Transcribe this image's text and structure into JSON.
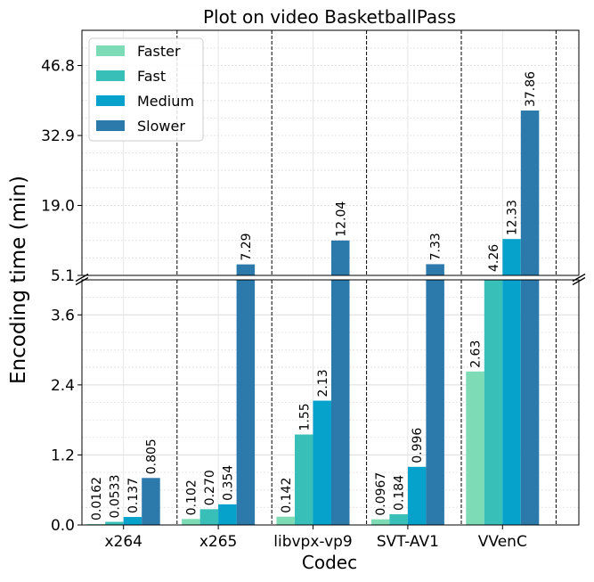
{
  "chart_data": {
    "type": "bar",
    "title": "Plot on video BasketballPass",
    "xlabel": "Codec",
    "ylabel": "Encoding time (min)",
    "categories": [
      "x264",
      "x265",
      "libvpx-vp9",
      "SVT-AV1",
      "VVenC"
    ],
    "series": [
      {
        "name": "Faster",
        "color": "#7ddcb5",
        "values": [
          0.0162,
          0.102,
          0.142,
          0.0967,
          2.63
        ],
        "labels": [
          "0.0162",
          "0.102",
          "0.142",
          "0.0967",
          "2.63"
        ]
      },
      {
        "name": "Fast",
        "color": "#38bfb8",
        "values": [
          0.0533,
          0.27,
          1.55,
          0.184,
          4.26
        ],
        "labels": [
          "0.0533",
          "0.270",
          "1.55",
          "0.184",
          "4.26"
        ]
      },
      {
        "name": "Medium",
        "color": "#07a2cc",
        "values": [
          0.137,
          0.354,
          2.13,
          0.996,
          12.33
        ],
        "labels": [
          "0.137",
          "0.354",
          "2.13",
          "0.996",
          "12.33"
        ]
      },
      {
        "name": "Slower",
        "color": "#2c7aab",
        "values": [
          0.805,
          7.29,
          12.04,
          7.33,
          37.86
        ],
        "labels": [
          "0.805",
          "7.29",
          "12.04",
          "7.33",
          "37.86"
        ]
      }
    ],
    "y_axis": "broken",
    "lower_range": [
      0,
      4.2
    ],
    "upper_range": [
      5.1,
      53.8
    ],
    "lower_ticks": [
      "0.0",
      "1.2",
      "2.4",
      "3.6"
    ],
    "upper_ticks": [
      "5.1",
      "19.0",
      "32.9",
      "46.8"
    ],
    "grid": true,
    "legend_position": "top-left"
  }
}
